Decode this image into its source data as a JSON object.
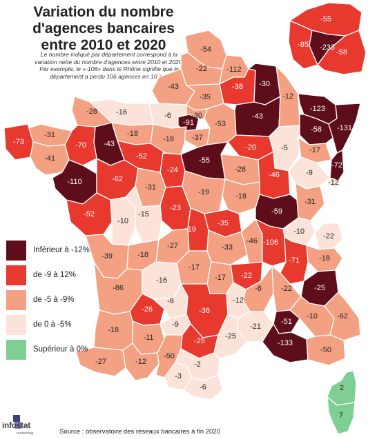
{
  "title": [
    "Variation du nombre",
    "d'agences bancaires",
    "entre 2010 et 2020"
  ],
  "subtitle": [
    "Le nombre indiqué par département correspond à la",
    "variation nette du nombre d'agences entre 2010 et 2020.",
    "Par exemple, le «-106» dans le Rhône signifie que le",
    "département a perdu 106 agences en 10 ans"
  ],
  "colors": {
    "dark": "#5e0d1b",
    "red": "#e8392e",
    "salmon": "#f4a183",
    "pale": "#fbe3da",
    "green": "#7fcf94"
  },
  "legend": [
    {
      "label": "Inférieur à -12%",
      "class": "dark"
    },
    {
      "label": "de -9 à 12%",
      "class": "red"
    },
    {
      "label": "de -5 à -9%",
      "class": "salmon"
    },
    {
      "label": "de 0 à -5%",
      "class": "pale"
    },
    {
      "label": "Supérieur à 0%",
      "class": "green"
    }
  ],
  "departments": [
    {
      "id": "nord",
      "value": "-54",
      "class": "salmon"
    },
    {
      "id": "pas-de-calais",
      "value": "-22",
      "class": "salmon"
    },
    {
      "id": "somme",
      "value": "-43",
      "class": "salmon"
    },
    {
      "id": "aisne",
      "value": "-112",
      "class": "salmon"
    },
    {
      "id": "oise",
      "value": "-35",
      "class": "salmon"
    },
    {
      "id": "seine-maritime",
      "value": "-6",
      "class": "pale"
    },
    {
      "id": "manche",
      "value": "-16",
      "class": "pale"
    },
    {
      "id": "calvados",
      "value": "-28",
      "class": "salmon"
    },
    {
      "id": "orne",
      "value": "-18",
      "class": "salmon"
    },
    {
      "id": "eure",
      "value": "-30",
      "class": "salmon"
    },
    {
      "id": "yvelines",
      "value": "-91",
      "class": "dark"
    },
    {
      "id": "eure-et-loir",
      "value": "-18",
      "class": "salmon"
    },
    {
      "id": "essonne",
      "value": "-37",
      "class": "salmon"
    },
    {
      "id": "seine-et-marne",
      "value": "-53",
      "class": "salmon"
    },
    {
      "id": "ardennes",
      "value": "-38",
      "class": "red"
    },
    {
      "id": "meuse",
      "value": "-30",
      "class": "dark"
    },
    {
      "id": "marne",
      "value": "-43",
      "class": "dark"
    },
    {
      "id": "meurthe-et-moselle",
      "value": "-12",
      "class": "salmon"
    },
    {
      "id": "moselle",
      "value": "-123",
      "class": "dark"
    },
    {
      "id": "bas-rhin",
      "value": "-131",
      "class": "dark"
    },
    {
      "id": "haut-rhin",
      "value": "-72",
      "class": "dark"
    },
    {
      "id": "vosges",
      "value": "-58",
      "class": "dark"
    },
    {
      "id": "aube",
      "value": "-20",
      "class": "red"
    },
    {
      "id": "haute-marne",
      "value": "-5",
      "class": "pale"
    },
    {
      "id": "haute-saone",
      "value": "-17",
      "class": "salmon"
    },
    {
      "id": "doubs",
      "value": "-9",
      "class": "pale"
    },
    {
      "id": "jura",
      "value": "-31",
      "class": "salmon"
    },
    {
      "id": "cote-dor",
      "value": "-46",
      "class": "red"
    },
    {
      "id": "yonne",
      "value": "-28",
      "class": "salmon"
    },
    {
      "id": "loiret",
      "value": "-55",
      "class": "dark"
    },
    {
      "id": "finistere",
      "value": "-73",
      "class": "red"
    },
    {
      "id": "cotes-darmor",
      "value": "-31",
      "class": "salmon"
    },
    {
      "id": "morbihan",
      "value": "-41",
      "class": "salmon"
    },
    {
      "id": "ille-et-vilaine",
      "value": "-70",
      "class": "red"
    },
    {
      "id": "mayenne",
      "value": "-43",
      "class": "dark"
    },
    {
      "id": "sarthe",
      "value": "-52",
      "class": "red"
    },
    {
      "id": "loire-atlantique",
      "value": "-110",
      "class": "dark"
    },
    {
      "id": "maine-et-loire",
      "value": "-62",
      "class": "red"
    },
    {
      "id": "indre-et-loire",
      "value": "-31",
      "class": "salmon"
    },
    {
      "id": "loir-et-cher",
      "value": "-24",
      "class": "red"
    },
    {
      "id": "cher",
      "value": "-19",
      "class": "salmon"
    },
    {
      "id": "nievre",
      "value": "-18",
      "class": "salmon"
    },
    {
      "id": "vendee",
      "value": "-52",
      "class": "red"
    },
    {
      "id": "deux-sevres",
      "value": "-10",
      "class": "pale"
    },
    {
      "id": "vienne",
      "value": "-15",
      "class": "pale"
    },
    {
      "id": "indre",
      "value": "-23",
      "class": "red"
    },
    {
      "id": "allier",
      "value": "-35",
      "class": "red"
    },
    {
      "id": "saone-et-loire",
      "value": "-59",
      "class": "dark"
    },
    {
      "id": "ain",
      "value": "-10",
      "class": "pale"
    },
    {
      "id": "haute-savoie",
      "value": "-22",
      "class": "pale"
    },
    {
      "id": "savoie",
      "value": "-18",
      "class": "salmon"
    },
    {
      "id": "rhone",
      "value": "-106",
      "class": "red"
    },
    {
      "id": "loire",
      "value": "-46",
      "class": "salmon"
    },
    {
      "id": "isere",
      "value": "-71",
      "class": "red"
    },
    {
      "id": "charente-maritime",
      "value": "-39",
      "class": "salmon"
    },
    {
      "id": "charente",
      "value": "-18",
      "class": "salmon"
    },
    {
      "id": "haute-vienne",
      "value": "-27",
      "class": "salmon"
    },
    {
      "id": "creuse",
      "value": "-19",
      "class": "red"
    },
    {
      "id": "puy-de-dome",
      "value": "-33",
      "class": "salmon"
    },
    {
      "id": "dordogne",
      "value": "-16",
      "class": "pale"
    },
    {
      "id": "correze",
      "value": "-17",
      "class": "salmon"
    },
    {
      "id": "cantal",
      "value": "-17",
      "class": "salmon"
    },
    {
      "id": "haute-loire",
      "value": "-22",
      "class": "red"
    },
    {
      "id": "ardeche",
      "value": "-6",
      "class": "salmon"
    },
    {
      "id": "drome",
      "value": "-22",
      "class": "salmon"
    },
    {
      "id": "hautes-alpes",
      "value": "-25",
      "class": "dark"
    },
    {
      "id": "gironde",
      "value": "-86",
      "class": "salmon"
    },
    {
      "id": "lot-et-garonne",
      "value": "-26",
      "class": "red"
    },
    {
      "id": "lot",
      "value": "-8",
      "class": "pale"
    },
    {
      "id": "aveyron",
      "value": "-36",
      "class": "red"
    },
    {
      "id": "lozere",
      "value": "-12",
      "class": "pale"
    },
    {
      "id": "gard",
      "value": "-21",
      "class": "pale"
    },
    {
      "id": "vaucluse",
      "value": "-51",
      "class": "dark"
    },
    {
      "id": "alpes-de-haute-provence",
      "value": "-10",
      "class": "salmon"
    },
    {
      "id": "alpes-maritimes",
      "value": "-62",
      "class": "salmon"
    },
    {
      "id": "bouches-du-rhone",
      "value": "-133",
      "class": "dark"
    },
    {
      "id": "var",
      "value": "-50",
      "class": "salmon"
    },
    {
      "id": "landes",
      "value": "-18",
      "class": "salmon"
    },
    {
      "id": "gers",
      "value": "-11",
      "class": "salmon"
    },
    {
      "id": "tarn-et-garonne",
      "value": "-9",
      "class": "pale"
    },
    {
      "id": "tarn",
      "value": "-25",
      "class": "red"
    },
    {
      "id": "herault",
      "value": "-25",
      "class": "pale"
    },
    {
      "id": "haute-garonne",
      "value": "-50",
      "class": "salmon"
    },
    {
      "id": "pyrenees-atlantiques",
      "value": "-27",
      "class": "salmon"
    },
    {
      "id": "hautes-pyrenees",
      "value": "-12",
      "class": "salmon"
    },
    {
      "id": "ariege",
      "value": "-3",
      "class": "pale"
    },
    {
      "id": "aude",
      "value": "-2",
      "class": "pale"
    },
    {
      "id": "pyrenees-orientales",
      "value": "-6",
      "class": "pale"
    },
    {
      "id": "territoire-de-belfort",
      "value": "-12",
      "class": "pale"
    },
    {
      "id": "paris",
      "value": "-233",
      "class": "dark"
    },
    {
      "id": "val-doise",
      "value": "-55",
      "class": "red"
    },
    {
      "id": "hauts-de-seine",
      "value": "-85",
      "class": "red"
    },
    {
      "id": "val-de-marne",
      "value": "-58",
      "class": "red"
    },
    {
      "id": "haute-corse",
      "value": "2",
      "class": "green"
    },
    {
      "id": "corse-du-sud",
      "value": "7",
      "class": "green"
    }
  ],
  "logo": {
    "name": "infostat",
    "sub": "marketing"
  },
  "source": "Source : observatoire des réseaux bancaires à fin 2020"
}
